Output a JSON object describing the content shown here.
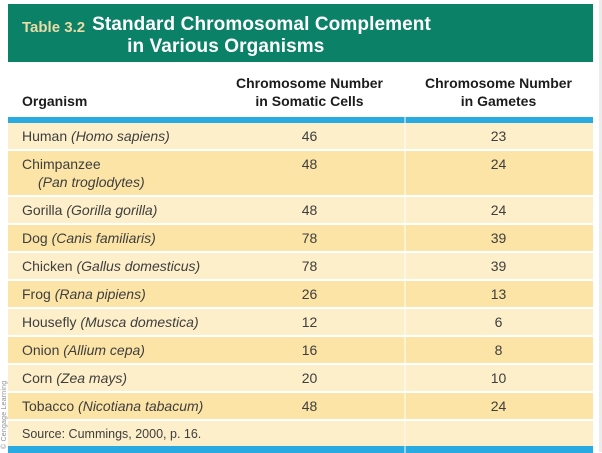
{
  "banner": {
    "label": "Table 3.2",
    "title_line1": "Standard Chromosomal Complement",
    "title_line2": "in Various Organisms"
  },
  "columns": {
    "organism": "Organism",
    "somatic_line1": "Chromosome Number",
    "somatic_line2": "in Somatic Cells",
    "gametes_line1": "Chromosome Number",
    "gametes_line2": "in Gametes"
  },
  "rows": [
    {
      "common": "Human",
      "scientific": "Homo sapiens",
      "somatic": "46",
      "gametes": "23"
    },
    {
      "common": "Chimpanzee",
      "scientific": "Pan troglodytes",
      "somatic": "48",
      "gametes": "24",
      "two_line": true
    },
    {
      "common": "Gorilla",
      "scientific": "Gorilla gorilla",
      "somatic": "48",
      "gametes": "24"
    },
    {
      "common": "Dog",
      "scientific": "Canis familiaris",
      "somatic": "78",
      "gametes": "39"
    },
    {
      "common": "Chicken",
      "scientific": "Gallus domesticus",
      "somatic": "78",
      "gametes": "39"
    },
    {
      "common": "Frog",
      "scientific": "Rana pipiens",
      "somatic": "26",
      "gametes": "13"
    },
    {
      "common": "Housefly",
      "scientific": "Musca domestica",
      "somatic": "12",
      "gametes": "6"
    },
    {
      "common": "Onion",
      "scientific": "Allium cepa",
      "somatic": "16",
      "gametes": "8"
    },
    {
      "common": "Corn",
      "scientific": "Zea mays",
      "somatic": "20",
      "gametes": "10"
    },
    {
      "common": "Tobacco",
      "scientific": "Nicotiana tabacum",
      "somatic": "48",
      "gametes": "24"
    }
  ],
  "source": "Source: Cummings, 2000, p. 16.",
  "credit": "© Cengage Learning",
  "colors": {
    "banner-green": "#0B8167",
    "banner-label": "#EBDCA6",
    "row-light": "#FDEFC9",
    "row-dark": "#FBE4A5",
    "rule-blue": "#29ABE2",
    "body-text": "#3E3E3E"
  }
}
